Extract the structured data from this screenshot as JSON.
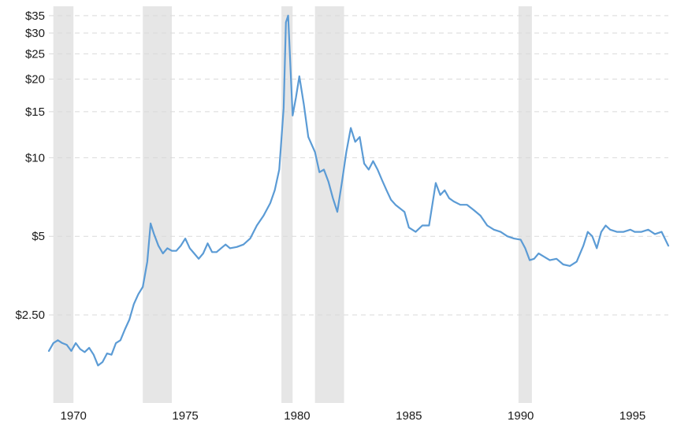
{
  "chart_data": {
    "type": "line",
    "title": "",
    "xlabel": "",
    "ylabel": "",
    "y_scale": "log",
    "xlim": [
      1968.9,
      1996.6
    ],
    "ylim": [
      1.15,
      38
    ],
    "grid": true,
    "y_ticks": [
      {
        "value": 35,
        "label": "$35"
      },
      {
        "value": 30,
        "label": "$30"
      },
      {
        "value": 25,
        "label": "$25"
      },
      {
        "value": 20,
        "label": "$20"
      },
      {
        "value": 15,
        "label": "$15"
      },
      {
        "value": 10,
        "label": "$10"
      },
      {
        "value": 5,
        "label": "$5"
      },
      {
        "value": 2.5,
        "label": "$2.50"
      }
    ],
    "x_ticks": [
      {
        "value": 1970,
        "label": "1970"
      },
      {
        "value": 1975,
        "label": "1975"
      },
      {
        "value": 1980,
        "label": "1980"
      },
      {
        "value": 1985,
        "label": "1985"
      },
      {
        "value": 1990,
        "label": "1990"
      },
      {
        "value": 1995,
        "label": "1995"
      }
    ],
    "shaded_periods": [
      [
        1969.1,
        1970.0
      ],
      [
        1973.1,
        1974.4
      ],
      [
        1979.3,
        1979.8
      ],
      [
        1980.8,
        1982.1
      ],
      [
        1989.9,
        1990.5
      ]
    ],
    "colors": {
      "line": "#5b9bd5",
      "band": "#e6e6e6",
      "grid": "#d9d9d9"
    },
    "series": [
      {
        "x": [
          1968.9,
          1969.1,
          1969.3,
          1969.5,
          1969.7,
          1969.9,
          1970.1,
          1970.3,
          1970.5,
          1970.7,
          1970.9,
          1971.1,
          1971.3,
          1971.5,
          1971.7,
          1971.9,
          1972.1,
          1972.3,
          1972.5,
          1972.7,
          1972.9,
          1973.1,
          1973.3,
          1973.45,
          1973.6,
          1973.8,
          1974.0,
          1974.2,
          1974.4,
          1974.6,
          1974.8,
          1975.0,
          1975.2,
          1975.4,
          1975.6,
          1975.8,
          1976.0,
          1976.2,
          1976.4,
          1976.6,
          1976.8,
          1977.0,
          1977.3,
          1977.6,
          1977.9,
          1978.2,
          1978.5,
          1978.8,
          1979.0,
          1979.2,
          1979.4,
          1979.5,
          1979.6,
          1979.8,
          1979.95,
          1980.1,
          1980.3,
          1980.5,
          1980.8,
          1981.0,
          1981.2,
          1981.4,
          1981.6,
          1981.8,
          1982.0,
          1982.2,
          1982.4,
          1982.6,
          1982.8,
          1983.0,
          1983.2,
          1983.4,
          1983.6,
          1983.8,
          1984.0,
          1984.2,
          1984.4,
          1984.6,
          1984.8,
          1985.0,
          1985.3,
          1985.6,
          1985.9,
          1986.2,
          1986.4,
          1986.6,
          1986.8,
          1987.0,
          1987.3,
          1987.6,
          1987.9,
          1988.2,
          1988.5,
          1988.8,
          1989.1,
          1989.4,
          1989.7,
          1990.0,
          1990.2,
          1990.4,
          1990.6,
          1990.8,
          1991.0,
          1991.3,
          1991.6,
          1991.9,
          1992.2,
          1992.5,
          1992.8,
          1993.0,
          1993.2,
          1993.4,
          1993.6,
          1993.8,
          1994.0,
          1994.3,
          1994.6,
          1994.9,
          1995.1,
          1995.4,
          1995.7,
          1996.0,
          1996.3,
          1996.6
        ],
        "y": [
          1.82,
          1.95,
          2.0,
          1.95,
          1.92,
          1.82,
          1.95,
          1.85,
          1.8,
          1.87,
          1.76,
          1.6,
          1.65,
          1.78,
          1.76,
          1.95,
          2.0,
          2.2,
          2.4,
          2.75,
          3.0,
          3.2,
          4.0,
          5.6,
          5.1,
          4.6,
          4.3,
          4.5,
          4.4,
          4.4,
          4.6,
          4.9,
          4.5,
          4.3,
          4.1,
          4.3,
          4.7,
          4.35,
          4.35,
          4.5,
          4.65,
          4.5,
          4.55,
          4.65,
          4.9,
          5.5,
          6.0,
          6.7,
          7.5,
          9.0,
          15.5,
          33.0,
          35.0,
          14.5,
          17.0,
          20.5,
          16.0,
          12.0,
          10.5,
          8.8,
          9.0,
          8.1,
          7.0,
          6.2,
          8.0,
          10.5,
          13.0,
          11.5,
          12.0,
          9.5,
          9.0,
          9.7,
          9.0,
          8.2,
          7.5,
          6.9,
          6.6,
          6.4,
          6.2,
          5.4,
          5.2,
          5.5,
          5.5,
          8.0,
          7.2,
          7.5,
          7.0,
          6.8,
          6.6,
          6.6,
          6.3,
          6.0,
          5.5,
          5.3,
          5.2,
          5.0,
          4.9,
          4.85,
          4.5,
          4.05,
          4.1,
          4.3,
          4.2,
          4.05,
          4.1,
          3.9,
          3.85,
          4.0,
          4.6,
          5.2,
          5.0,
          4.5,
          5.2,
          5.5,
          5.3,
          5.2,
          5.2,
          5.3,
          5.2,
          5.2,
          5.3,
          5.1,
          5.2,
          4.6
        ]
      }
    ]
  }
}
